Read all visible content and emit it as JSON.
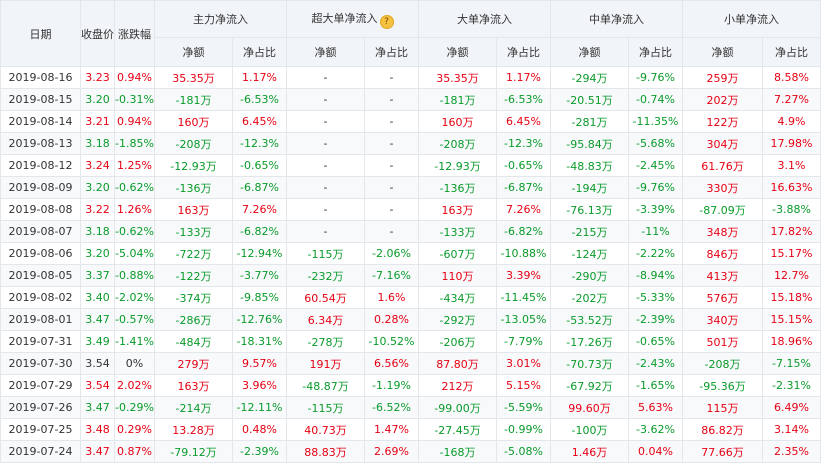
{
  "headers": {
    "date": "日期",
    "close": "收盘价",
    "change": "涨跌幅",
    "main": "主力净流入",
    "super": "超大单净流入",
    "large": "大单净流入",
    "medium": "中单净流入",
    "small": "小单净流入",
    "net": "净额",
    "ratio": "净占比",
    "help_glyph": "?"
  },
  "colors": {
    "up": "#e60012",
    "down": "#0a9b2a",
    "neutral": "#333333"
  },
  "rows": [
    {
      "date": "2019-08-16",
      "close": "3.23",
      "change": "0.94%",
      "main_net": "35.35万",
      "main_ratio": "1.17%",
      "super_net": "-",
      "super_ratio": "-",
      "large_net": "35.35万",
      "large_ratio": "1.17%",
      "medium_net": "-294万",
      "medium_ratio": "-9.76%",
      "small_net": "259万",
      "small_ratio": "8.58%"
    },
    {
      "date": "2019-08-15",
      "close": "3.20",
      "change": "-0.31%",
      "main_net": "-181万",
      "main_ratio": "-6.53%",
      "super_net": "-",
      "super_ratio": "-",
      "large_net": "-181万",
      "large_ratio": "-6.53%",
      "medium_net": "-20.51万",
      "medium_ratio": "-0.74%",
      "small_net": "202万",
      "small_ratio": "7.27%"
    },
    {
      "date": "2019-08-14",
      "close": "3.21",
      "change": "0.94%",
      "main_net": "160万",
      "main_ratio": "6.45%",
      "super_net": "-",
      "super_ratio": "-",
      "large_net": "160万",
      "large_ratio": "6.45%",
      "medium_net": "-281万",
      "medium_ratio": "-11.35%",
      "small_net": "122万",
      "small_ratio": "4.9%"
    },
    {
      "date": "2019-08-13",
      "close": "3.18",
      "change": "-1.85%",
      "main_net": "-208万",
      "main_ratio": "-12.3%",
      "super_net": "-",
      "super_ratio": "-",
      "large_net": "-208万",
      "large_ratio": "-12.3%",
      "medium_net": "-95.84万",
      "medium_ratio": "-5.68%",
      "small_net": "304万",
      "small_ratio": "17.98%"
    },
    {
      "date": "2019-08-12",
      "close": "3.24",
      "change": "1.25%",
      "main_net": "-12.93万",
      "main_ratio": "-0.65%",
      "super_net": "-",
      "super_ratio": "-",
      "large_net": "-12.93万",
      "large_ratio": "-0.65%",
      "medium_net": "-48.83万",
      "medium_ratio": "-2.45%",
      "small_net": "61.76万",
      "small_ratio": "3.1%"
    },
    {
      "date": "2019-08-09",
      "close": "3.20",
      "change": "-0.62%",
      "main_net": "-136万",
      "main_ratio": "-6.87%",
      "super_net": "-",
      "super_ratio": "-",
      "large_net": "-136万",
      "large_ratio": "-6.87%",
      "medium_net": "-194万",
      "medium_ratio": "-9.76%",
      "small_net": "330万",
      "small_ratio": "16.63%"
    },
    {
      "date": "2019-08-08",
      "close": "3.22",
      "change": "1.26%",
      "main_net": "163万",
      "main_ratio": "7.26%",
      "super_net": "-",
      "super_ratio": "-",
      "large_net": "163万",
      "large_ratio": "7.26%",
      "medium_net": "-76.13万",
      "medium_ratio": "-3.39%",
      "small_net": "-87.09万",
      "small_ratio": "-3.88%"
    },
    {
      "date": "2019-08-07",
      "close": "3.18",
      "change": "-0.62%",
      "main_net": "-133万",
      "main_ratio": "-6.82%",
      "super_net": "-",
      "super_ratio": "-",
      "large_net": "-133万",
      "large_ratio": "-6.82%",
      "medium_net": "-215万",
      "medium_ratio": "-11%",
      "small_net": "348万",
      "small_ratio": "17.82%"
    },
    {
      "date": "2019-08-06",
      "close": "3.20",
      "change": "-5.04%",
      "main_net": "-722万",
      "main_ratio": "-12.94%",
      "super_net": "-115万",
      "super_ratio": "-2.06%",
      "large_net": "-607万",
      "large_ratio": "-10.88%",
      "medium_net": "-124万",
      "medium_ratio": "-2.22%",
      "small_net": "846万",
      "small_ratio": "15.17%"
    },
    {
      "date": "2019-08-05",
      "close": "3.37",
      "change": "-0.88%",
      "main_net": "-122万",
      "main_ratio": "-3.77%",
      "super_net": "-232万",
      "super_ratio": "-7.16%",
      "large_net": "110万",
      "large_ratio": "3.39%",
      "medium_net": "-290万",
      "medium_ratio": "-8.94%",
      "small_net": "413万",
      "small_ratio": "12.7%"
    },
    {
      "date": "2019-08-02",
      "close": "3.40",
      "change": "-2.02%",
      "main_net": "-374万",
      "main_ratio": "-9.85%",
      "super_net": "60.54万",
      "super_ratio": "1.6%",
      "large_net": "-434万",
      "large_ratio": "-11.45%",
      "medium_net": "-202万",
      "medium_ratio": "-5.33%",
      "small_net": "576万",
      "small_ratio": "15.18%"
    },
    {
      "date": "2019-08-01",
      "close": "3.47",
      "change": "-0.57%",
      "main_net": "-286万",
      "main_ratio": "-12.76%",
      "super_net": "6.34万",
      "super_ratio": "0.28%",
      "large_net": "-292万",
      "large_ratio": "-13.05%",
      "medium_net": "-53.52万",
      "medium_ratio": "-2.39%",
      "small_net": "340万",
      "small_ratio": "15.15%"
    },
    {
      "date": "2019-07-31",
      "close": "3.49",
      "change": "-1.41%",
      "main_net": "-484万",
      "main_ratio": "-18.31%",
      "super_net": "-278万",
      "super_ratio": "-10.52%",
      "large_net": "-206万",
      "large_ratio": "-7.79%",
      "medium_net": "-17.26万",
      "medium_ratio": "-0.65%",
      "small_net": "501万",
      "small_ratio": "18.96%"
    },
    {
      "date": "2019-07-30",
      "close": "3.54",
      "change": "0%",
      "main_net": "279万",
      "main_ratio": "9.57%",
      "super_net": "191万",
      "super_ratio": "6.56%",
      "large_net": "87.80万",
      "large_ratio": "3.01%",
      "medium_net": "-70.73万",
      "medium_ratio": "-2.43%",
      "small_net": "-208万",
      "small_ratio": "-7.15%"
    },
    {
      "date": "2019-07-29",
      "close": "3.54",
      "change": "2.02%",
      "main_net": "163万",
      "main_ratio": "3.96%",
      "super_net": "-48.87万",
      "super_ratio": "-1.19%",
      "large_net": "212万",
      "large_ratio": "5.15%",
      "medium_net": "-67.92万",
      "medium_ratio": "-1.65%",
      "small_net": "-95.36万",
      "small_ratio": "-2.31%"
    },
    {
      "date": "2019-07-26",
      "close": "3.47",
      "change": "-0.29%",
      "main_net": "-214万",
      "main_ratio": "-12.11%",
      "super_net": "-115万",
      "super_ratio": "-6.52%",
      "large_net": "-99.00万",
      "large_ratio": "-5.59%",
      "medium_net": "99.60万",
      "medium_ratio": "5.63%",
      "small_net": "115万",
      "small_ratio": "6.49%"
    },
    {
      "date": "2019-07-25",
      "close": "3.48",
      "change": "0.29%",
      "main_net": "13.28万",
      "main_ratio": "0.48%",
      "super_net": "40.73万",
      "super_ratio": "1.47%",
      "large_net": "-27.45万",
      "large_ratio": "-0.99%",
      "medium_net": "-100万",
      "medium_ratio": "-3.62%",
      "small_net": "86.82万",
      "small_ratio": "3.14%"
    },
    {
      "date": "2019-07-24",
      "close": "3.47",
      "change": "0.87%",
      "main_net": "-79.12万",
      "main_ratio": "-2.39%",
      "super_net": "88.83万",
      "super_ratio": "2.69%",
      "large_net": "-168万",
      "large_ratio": "-5.08%",
      "medium_net": "1.46万",
      "medium_ratio": "0.04%",
      "small_net": "77.66万",
      "small_ratio": "2.35%"
    }
  ]
}
